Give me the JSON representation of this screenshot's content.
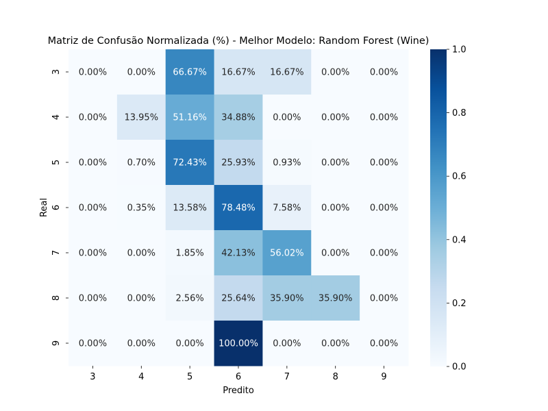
{
  "chart_data": {
    "type": "heatmap",
    "title": "Matriz de Confusão Normalizada (%) - Melhor Modelo: Random Forest (Wine)",
    "xlabel": "Predito",
    "ylabel": "Real",
    "x_categories": [
      "3",
      "4",
      "5",
      "6",
      "7",
      "8",
      "9"
    ],
    "y_categories": [
      "3",
      "4",
      "5",
      "6",
      "7",
      "8",
      "9"
    ],
    "values": [
      [
        0.0,
        0.0,
        0.6667,
        0.1667,
        0.1667,
        0.0,
        0.0
      ],
      [
        0.0,
        0.1395,
        0.5116,
        0.3488,
        0.0,
        0.0,
        0.0
      ],
      [
        0.0,
        0.007,
        0.7243,
        0.2593,
        0.0093,
        0.0,
        0.0
      ],
      [
        0.0,
        0.0035,
        0.1358,
        0.7848,
        0.0758,
        0.0,
        0.0
      ],
      [
        0.0,
        0.0,
        0.0185,
        0.4213,
        0.5602,
        0.0,
        0.0
      ],
      [
        0.0,
        0.0,
        0.0256,
        0.2564,
        0.359,
        0.359,
        0.0
      ],
      [
        0.0,
        0.0,
        0.0,
        1.0,
        0.0,
        0.0,
        0.0
      ]
    ],
    "annotations": [
      [
        "0.00%",
        "0.00%",
        "66.67%",
        "16.67%",
        "16.67%",
        "0.00%",
        "0.00%"
      ],
      [
        "0.00%",
        "13.95%",
        "51.16%",
        "34.88%",
        "0.00%",
        "0.00%",
        "0.00%"
      ],
      [
        "0.00%",
        "0.70%",
        "72.43%",
        "25.93%",
        "0.93%",
        "0.00%",
        "0.00%"
      ],
      [
        "0.00%",
        "0.35%",
        "13.58%",
        "78.48%",
        "7.58%",
        "0.00%",
        "0.00%"
      ],
      [
        "0.00%",
        "0.00%",
        "1.85%",
        "42.13%",
        "56.02%",
        "0.00%",
        "0.00%"
      ],
      [
        "0.00%",
        "0.00%",
        "2.56%",
        "25.64%",
        "35.90%",
        "35.90%",
        "0.00%"
      ],
      [
        "0.00%",
        "0.00%",
        "0.00%",
        "100.00%",
        "0.00%",
        "0.00%",
        "0.00%"
      ]
    ],
    "colormap": "Blues",
    "colorbar": {
      "range": [
        0.0,
        1.0
      ],
      "ticks": [
        "0.0",
        "0.2",
        "0.4",
        "0.6",
        "0.8",
        "1.0"
      ],
      "tick_values": [
        0.0,
        0.2,
        0.4,
        0.6,
        0.8,
        1.0
      ]
    },
    "grid": false
  }
}
